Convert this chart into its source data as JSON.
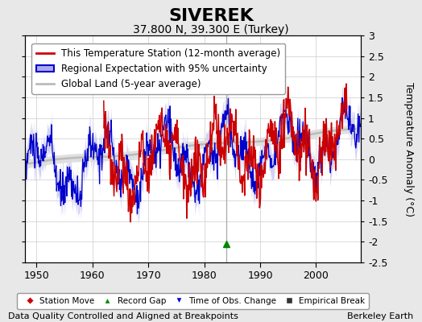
{
  "title": "SIVEREK",
  "subtitle": "37.800 N, 39.300 E (Turkey)",
  "ylabel": "Temperature Anomaly (°C)",
  "xlabel_note": "Data Quality Controlled and Aligned at Breakpoints",
  "credit": "Berkeley Earth",
  "ylim": [
    -2.5,
    3.0
  ],
  "xlim": [
    1948,
    2008
  ],
  "xticks": [
    1950,
    1960,
    1970,
    1980,
    1990,
    2000
  ],
  "yticks": [
    -2.5,
    -2,
    -1.5,
    -1,
    -0.5,
    0,
    0.5,
    1,
    1.5,
    2,
    2.5,
    3
  ],
  "background_color": "#e8e8e8",
  "plot_bg_color": "#ffffff",
  "red_line_color": "#cc0000",
  "blue_line_color": "#0000cc",
  "blue_fill_color": "#aaaaee",
  "gray_line_color": "#bbbbbb",
  "gray_fill_color": "#dddddd",
  "vline_color": "#aaaaaa",
  "vline_x": 1984,
  "green_marker_x": 1984,
  "green_marker_y": -2.05,
  "title_fontsize": 16,
  "subtitle_fontsize": 10,
  "axis_fontsize": 9,
  "tick_fontsize": 9,
  "legend_fontsize": 8.5,
  "note_fontsize": 8
}
